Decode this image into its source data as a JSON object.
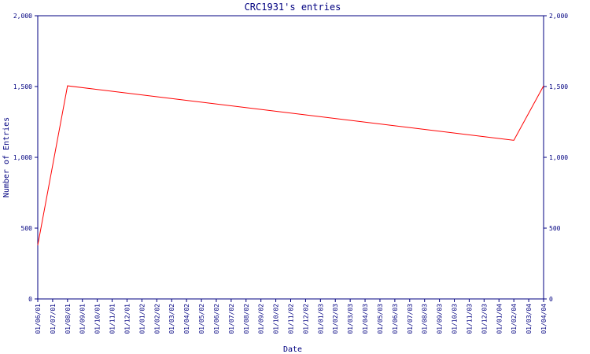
{
  "chart_data": {
    "type": "line",
    "title": "CRC1931's entries",
    "xlabel": "Date",
    "ylabel": "Number of Entries",
    "ylim": [
      0,
      2000
    ],
    "y_ticks": [
      0,
      500,
      1000,
      1500,
      2000
    ],
    "y_tick_labels": [
      "0",
      "500",
      "1,000",
      "1,500",
      "2,000"
    ],
    "x_tick_labels": [
      "01/06/01",
      "01/07/01",
      "01/08/01",
      "01/09/01",
      "01/10/01",
      "01/11/01",
      "01/12/01",
      "01/01/02",
      "01/02/02",
      "01/03/02",
      "01/04/02",
      "01/05/02",
      "01/06/02",
      "01/07/02",
      "01/08/02",
      "01/09/02",
      "01/10/02",
      "01/11/02",
      "01/12/02",
      "01/01/03",
      "01/02/03",
      "01/03/03",
      "01/04/03",
      "01/05/03",
      "01/06/03",
      "01/07/03",
      "01/08/03",
      "01/09/03",
      "01/10/03",
      "01/11/03",
      "01/12/03",
      "01/01/04",
      "01/02/04",
      "01/03/04",
      "01/04/04"
    ],
    "grid": false,
    "series": [
      {
        "color": "#ff0000",
        "points": [
          {
            "x": "01/06/01",
            "y": 380
          },
          {
            "x": "01/08/01",
            "y": 1505
          },
          {
            "x": "01/02/04",
            "y": 1120
          },
          {
            "x": "01/04/04",
            "y": 1505
          }
        ]
      }
    ],
    "colors": {
      "axis": "#000080",
      "line": "#ff0000",
      "background": "#ffffff"
    }
  }
}
